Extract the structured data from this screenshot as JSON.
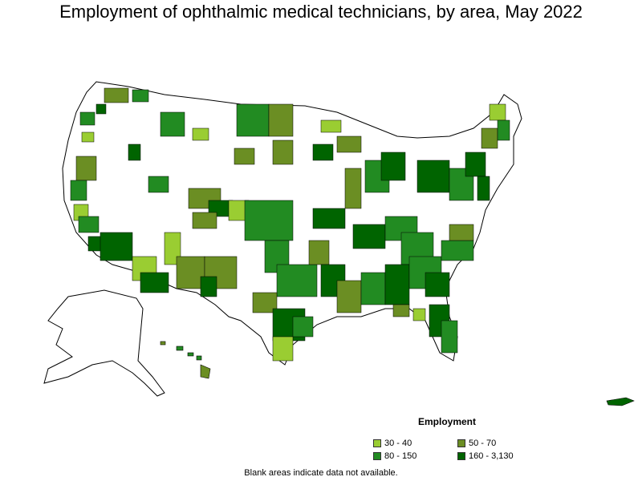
{
  "title": "Employment of ophthalmic medical technicians, by area, May 2022",
  "legend": {
    "title": "Employment",
    "items": [
      {
        "label": "30 - 40",
        "color": "#9acd32"
      },
      {
        "label": "50 - 70",
        "color": "#6b8e23"
      },
      {
        "label": "80 - 150",
        "color": "#228b22"
      },
      {
        "label": "160 - 3,130",
        "color": "#006400"
      }
    ]
  },
  "footnote": "Blank areas indicate data not available."
}
